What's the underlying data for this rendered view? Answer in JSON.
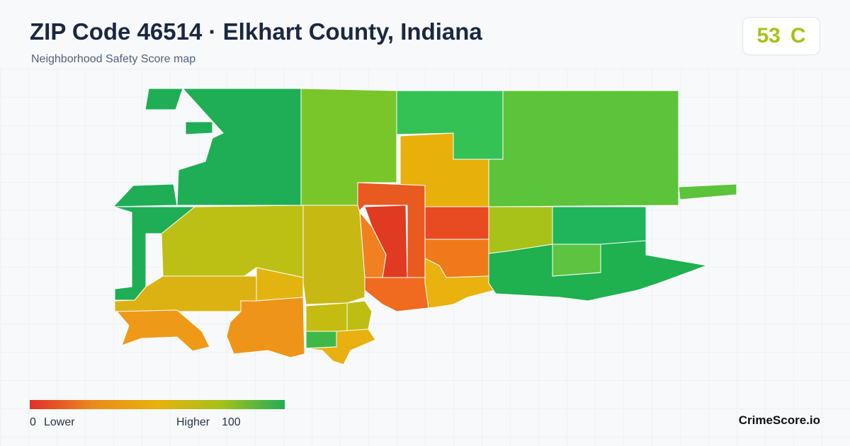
{
  "header": {
    "title": "ZIP Code 46514 · Elkhart County, Indiana",
    "subtitle": "Neighborhood Safety Score map"
  },
  "score": {
    "value": "53",
    "grade": "C"
  },
  "legend": {
    "min": "0",
    "min_label": "Lower",
    "max_label": "Higher",
    "max": "100"
  },
  "footer": {
    "brand": "CrimeScore.io"
  }
}
